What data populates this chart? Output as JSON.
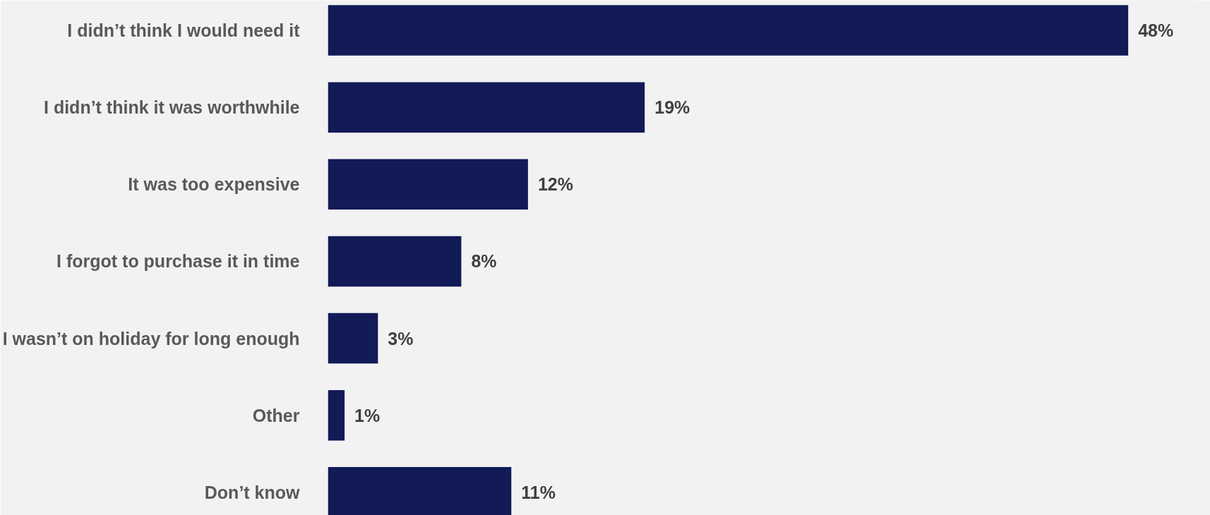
{
  "chart_data": {
    "type": "bar",
    "orientation": "horizontal",
    "categories": [
      "I didn’t think I would need it",
      "I didn’t think it was worthwhile",
      "It was too expensive",
      "I forgot to purchase it in time",
      "I wasn’t on holiday for long enough",
      "Other",
      "Don’t know"
    ],
    "values": [
      48,
      19,
      12,
      8,
      3,
      1,
      11
    ],
    "value_labels": [
      "48%",
      "19%",
      "12%",
      "8%",
      "3%",
      "1%",
      "11%"
    ],
    "color": "#121a58"
  }
}
